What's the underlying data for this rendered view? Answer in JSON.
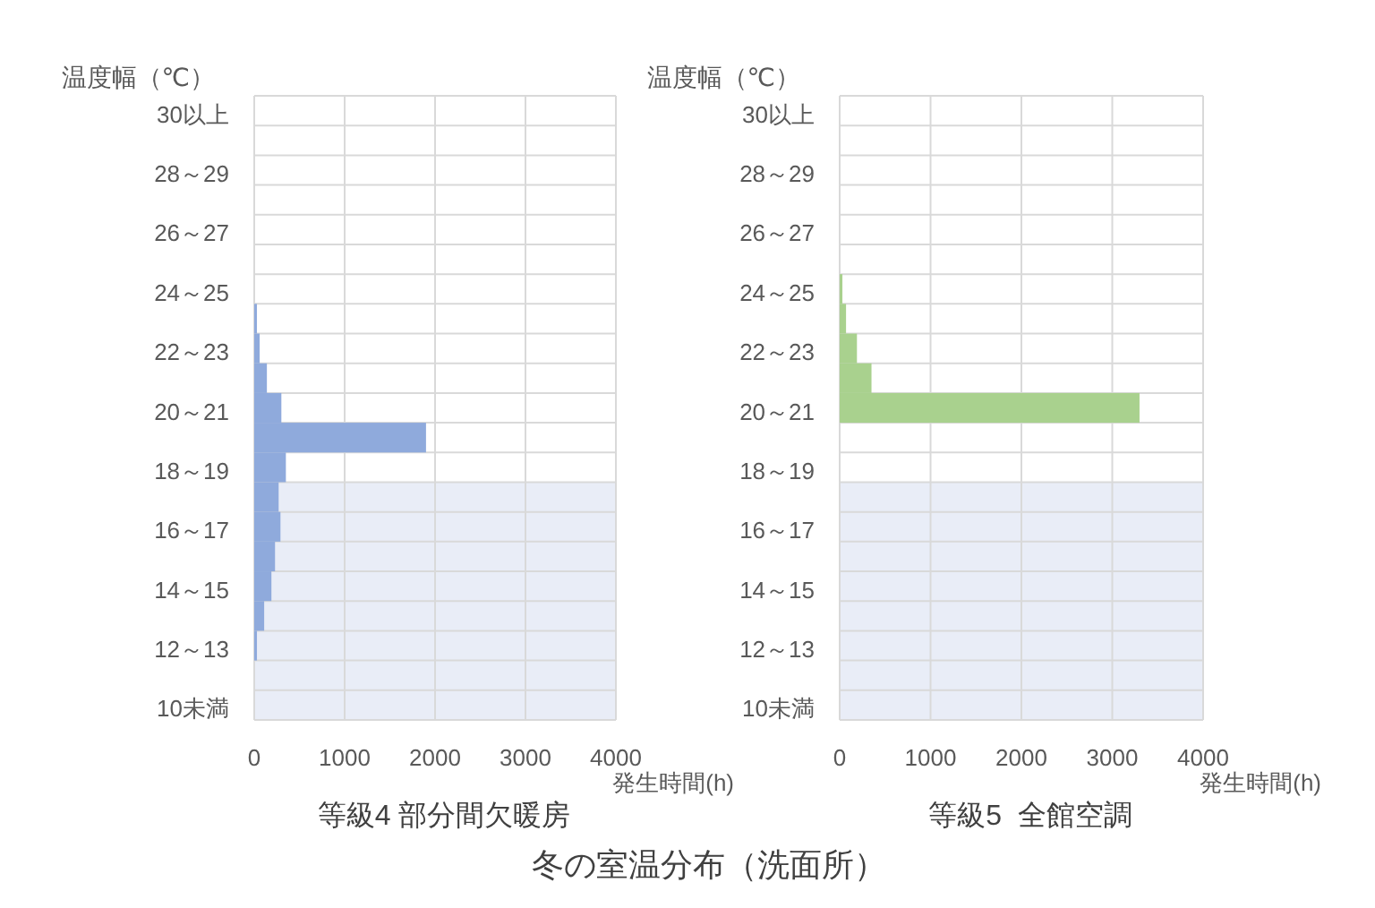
{
  "chart_data": [
    {
      "type": "bar",
      "orientation": "horizontal",
      "title": "等級4 部分間欠暖房",
      "xlabel": "発生時間(h)",
      "ylabel": "温度幅（℃）",
      "categories": [
        "30以上",
        null,
        "28～29",
        null,
        "26～27",
        null,
        "24～25",
        null,
        "22～23",
        null,
        "20～21",
        null,
        "18～19",
        null,
        "16～17",
        null,
        "14～15",
        null,
        "12～13",
        null,
        "10未満"
      ],
      "values": [
        0,
        0,
        0,
        0,
        0,
        0,
        0,
        30,
        60,
        140,
        300,
        1900,
        350,
        270,
        290,
        230,
        190,
        110,
        30,
        0,
        0
      ],
      "color": "#8faadc",
      "xlim": [
        0,
        4000
      ],
      "xticks": [
        0,
        1000,
        2000,
        3000,
        4000
      ],
      "grid": true,
      "bands": [
        {
          "axis": "y",
          "from": "10未満",
          "to": "18～19",
          "color": "#e9edf7"
        }
      ]
    },
    {
      "type": "bar",
      "orientation": "horizontal",
      "title": "等級5  全館空調",
      "xlabel": "発生時間(h)",
      "ylabel": "温度幅（℃）",
      "categories": [
        "30以上",
        null,
        "28～29",
        null,
        "26～27",
        null,
        "24～25",
        null,
        "22～23",
        null,
        "20～21",
        null,
        "18～19",
        null,
        "16～17",
        null,
        "14～15",
        null,
        "12～13",
        null,
        "10未満"
      ],
      "values": [
        0,
        0,
        0,
        0,
        0,
        0,
        30,
        70,
        190,
        350,
        3300,
        0,
        0,
        0,
        0,
        0,
        0,
        0,
        0,
        0,
        0
      ],
      "color": "#a9d18e",
      "xlim": [
        0,
        4000
      ],
      "xticks": [
        0,
        1000,
        2000,
        3000,
        4000
      ],
      "grid": true,
      "bands": [
        {
          "axis": "y",
          "from": "10未満",
          "to": "18～19",
          "color": "#e9edf7"
        }
      ],
      "annotations": [
        "冬の室温分布（洗面所）"
      ]
    }
  ]
}
